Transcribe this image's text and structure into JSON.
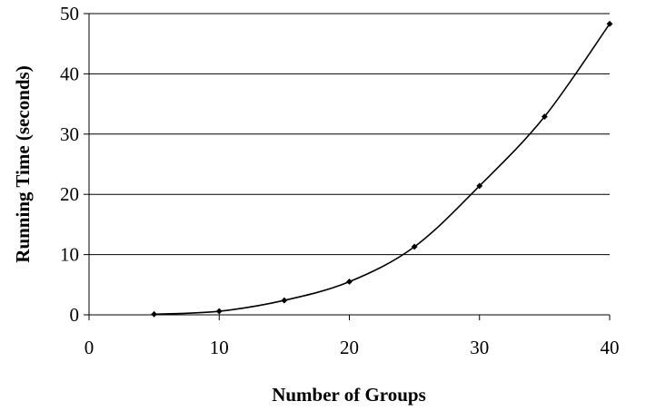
{
  "chart_data": {
    "type": "line",
    "title": "",
    "xlabel": "Number of Groups",
    "ylabel": "Running Time (seconds)",
    "xlim": [
      0,
      40
    ],
    "ylim": [
      0,
      50
    ],
    "xticks": [
      0,
      10,
      20,
      30,
      40
    ],
    "yticks": [
      0,
      10,
      20,
      30,
      40,
      50
    ],
    "grid": "horizontal",
    "legend": "none",
    "x": [
      5,
      10,
      15,
      20,
      25,
      30,
      35,
      40
    ],
    "series": [
      {
        "values": [
          0.1,
          0.6,
          2.4,
          5.5,
          11.3,
          21.4,
          32.9,
          48.3
        ],
        "color": "#000000",
        "marker": "diamond",
        "smooth": true
      }
    ]
  }
}
